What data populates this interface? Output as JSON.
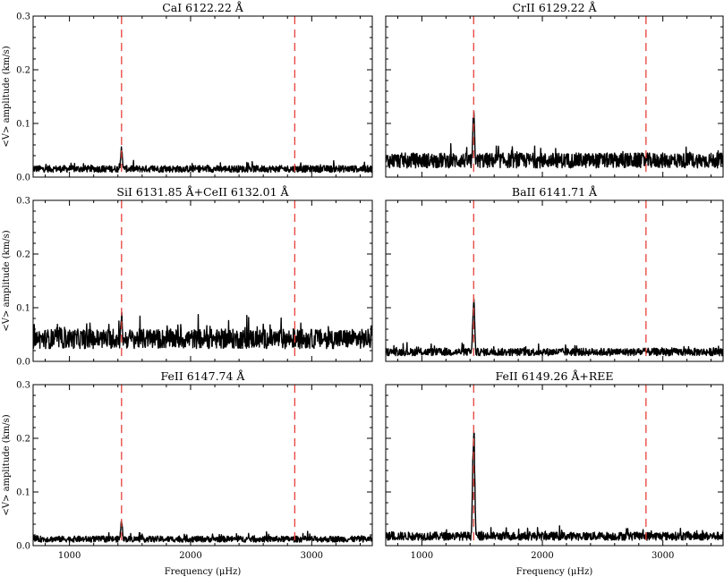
{
  "chart_data": [
    {
      "type": "line",
      "title": "CaI 6122.22 Å",
      "ylabel": "<V> amplitude (km/s)",
      "xlabel": "",
      "xlim": [
        700,
        3500
      ],
      "ylim": [
        0,
        0.3
      ],
      "yticks": [
        "0.0",
        "0.1",
        "0.2",
        "0.3"
      ],
      "xticks": [],
      "reference_lines": [
        1430,
        2860
      ],
      "noise_level": 0.014,
      "noise_spread": 0.009,
      "peaks": [
        {
          "x": 1430,
          "y": 0.058
        }
      ]
    },
    {
      "type": "line",
      "title": "CrII 6129.22 Å",
      "ylabel": "",
      "xlabel": "",
      "xlim": [
        700,
        3500
      ],
      "ylim": [
        0,
        0.3
      ],
      "yticks": [],
      "xticks": [],
      "reference_lines": [
        1430,
        2860
      ],
      "noise_level": 0.028,
      "noise_spread": 0.02,
      "peaks": [
        {
          "x": 1430,
          "y": 0.125
        }
      ]
    },
    {
      "type": "line",
      "title": "SiI 6131.85 Å+CeII 6132.01 Å",
      "ylabel": "<V> amplitude (km/s)",
      "xlabel": "",
      "xlim": [
        700,
        3500
      ],
      "ylim": [
        0,
        0.3
      ],
      "yticks": [
        "0.0",
        "0.1",
        "0.2",
        "0.3"
      ],
      "xticks": [],
      "reference_lines": [
        1430,
        2860
      ],
      "noise_level": 0.038,
      "noise_spread": 0.026,
      "peaks": [
        {
          "x": 1430,
          "y": 0.095
        }
      ]
    },
    {
      "type": "line",
      "title": "BaII 6141.71 Å",
      "ylabel": "",
      "xlabel": "",
      "xlim": [
        700,
        3500
      ],
      "ylim": [
        0,
        0.3
      ],
      "yticks": [],
      "xticks": [],
      "reference_lines": [
        1430,
        2860
      ],
      "noise_level": 0.016,
      "noise_spread": 0.01,
      "peaks": [
        {
          "x": 1430,
          "y": 0.125
        }
      ]
    },
    {
      "type": "line",
      "title": "FeII 6147.74 Å",
      "ylabel": "<V> amplitude (km/s)",
      "xlabel": "Frequency (μHz)",
      "xlim": [
        700,
        3500
      ],
      "ylim": [
        0,
        0.3
      ],
      "yticks": [
        "0.0",
        "0.1",
        "0.2",
        "0.3"
      ],
      "xticks": [
        "1000",
        "2000",
        "3000"
      ],
      "reference_lines": [
        1430,
        2860
      ],
      "noise_level": 0.011,
      "noise_spread": 0.008,
      "peaks": [
        {
          "x": 1430,
          "y": 0.048
        }
      ]
    },
    {
      "type": "line",
      "title": "FeII 6149.26 Å+REE",
      "ylabel": "",
      "xlabel": "Frequency (μHz)",
      "xlim": [
        700,
        3500
      ],
      "ylim": [
        0,
        0.3
      ],
      "yticks": [],
      "xticks": [
        "1000",
        "2000",
        "3000"
      ],
      "reference_lines": [
        1430,
        2860
      ],
      "noise_level": 0.016,
      "noise_spread": 0.011,
      "peaks": [
        {
          "x": 1430,
          "y": 0.24
        }
      ]
    }
  ],
  "colors": {
    "trace": "#000000",
    "reference_line": "#e8403a",
    "axes": "#000000"
  }
}
